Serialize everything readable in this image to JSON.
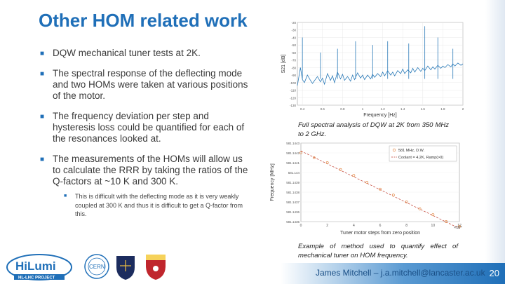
{
  "slide": {
    "title": "Other HOM related work",
    "bullets": [
      "DQW mechanical tuner tests at 2K.",
      "The spectral response of the deflecting mode and two HOMs were taken at various positions of the motor.",
      "The frequency deviation per step and hysteresis loss could be quantified for each of the resonances looked at.",
      "The measurements of the HOMs will allow us to calculate the RRR by taking the ratios of the Q-factors at ~10 K and 300 K."
    ],
    "sub_bullet": "This is difficult with the deflecting mode as it is very weakly coupled at 300 K and thus it is difficult to get a Q-factor from this.",
    "caption1": "Full spectral analysis of DQW at 2K from 350 MHz to 2 GHz.",
    "caption2": "Example of method used to quantify effect of mechanical tuner on HOM frequency.",
    "footer": "James Mitchell – j.a.mitchell@lancaster.ac.uk",
    "page_number": "20",
    "logo_text": {
      "hilumi": "HiLumi",
      "hilumi_sub": "HL-LHC PROJECT",
      "cern": "CERN"
    }
  },
  "colors": {
    "accent": "#1f6fb8",
    "series_blue": "#2a7ab8",
    "series_orange": "#e07a2e"
  },
  "chart_data": [
    {
      "type": "line",
      "title": "",
      "xlabel": "Frequency [Hz]",
      "ylabel": "S21 [dB]",
      "x_ticks": [
        "0.4",
        "0.6",
        "0.8",
        "1",
        "1.2",
        "1.4",
        "1.6",
        "1.8",
        "2"
      ],
      "y_ticks": [
        "-20",
        "-30",
        "-40",
        "-50",
        "-60",
        "-70",
        "-80",
        "-90",
        "-100",
        "-110",
        "-120",
        "-130"
      ],
      "xlim": [
        0.35,
        2.0
      ],
      "ylim": [
        -130,
        -20
      ],
      "series": [
        {
          "values": [
            [
              0.35,
              -104
            ],
            [
              0.38,
              -80
            ],
            [
              0.4,
              -96
            ],
            [
              0.42,
              -100
            ],
            [
              0.45,
              -90
            ],
            [
              0.48,
              -97
            ],
            [
              0.5,
              -101
            ],
            [
              0.55,
              -92
            ],
            [
              0.58,
              -99
            ],
            [
              0.6,
              -94
            ],
            [
              0.62,
              -102
            ],
            [
              0.65,
              -88
            ],
            [
              0.68,
              -97
            ],
            [
              0.7,
              -91
            ],
            [
              0.72,
              -100
            ],
            [
              0.75,
              -86
            ],
            [
              0.78,
              -95
            ],
            [
              0.8,
              -89
            ],
            [
              0.82,
              -97
            ],
            [
              0.85,
              -92
            ],
            [
              0.88,
              -98
            ],
            [
              0.9,
              -90
            ],
            [
              0.92,
              -96
            ],
            [
              0.95,
              -87
            ],
            [
              0.98,
              -94
            ],
            [
              1.0,
              -90
            ],
            [
              1.02,
              -96
            ],
            [
              1.05,
              -90
            ],
            [
              1.08,
              -95
            ],
            [
              1.1,
              -89
            ],
            [
              1.12,
              -93
            ],
            [
              1.15,
              -88
            ],
            [
              1.18,
              -92
            ],
            [
              1.2,
              -86
            ],
            [
              1.22,
              -91
            ],
            [
              1.25,
              -84
            ],
            [
              1.28,
              -90
            ],
            [
              1.3,
              -86
            ],
            [
              1.32,
              -91
            ],
            [
              1.35,
              -84
            ],
            [
              1.38,
              -88
            ],
            [
              1.4,
              -82
            ],
            [
              1.42,
              -88
            ],
            [
              1.45,
              -83
            ],
            [
              1.48,
              -87
            ],
            [
              1.5,
              -81
            ],
            [
              1.52,
              -86
            ],
            [
              1.55,
              -80
            ],
            [
              1.58,
              -85
            ],
            [
              1.6,
              -81
            ],
            [
              1.62,
              -84
            ],
            [
              1.65,
              -78
            ],
            [
              1.68,
              -83
            ],
            [
              1.7,
              -79
            ],
            [
              1.72,
              -82
            ],
            [
              1.75,
              -77
            ],
            [
              1.78,
              -81
            ],
            [
              1.8,
              -78
            ],
            [
              1.82,
              -80
            ],
            [
              1.85,
              -76
            ],
            [
              1.88,
              -79
            ],
            [
              1.9,
              -75
            ],
            [
              1.92,
              -78
            ],
            [
              1.95,
              -74
            ],
            [
              1.98,
              -77
            ],
            [
              2.0,
              -75
            ]
          ]
        },
        {
          "peaks": [
            [
              0.4,
              -40
            ],
            [
              0.58,
              -60
            ],
            [
              0.75,
              -55
            ],
            [
              0.93,
              -45
            ],
            [
              1.1,
              -50
            ],
            [
              1.25,
              -45
            ],
            [
              1.46,
              -48
            ],
            [
              1.62,
              -25
            ],
            [
              1.75,
              -40
            ],
            [
              1.9,
              -55
            ]
          ]
        }
      ]
    },
    {
      "type": "line",
      "title": "",
      "xlabel": "Tuner motor steps from zero position",
      "ylabel": "Frequency [MHz]",
      "x_ticks": [
        "0",
        "2",
        "4",
        "6",
        "8",
        "10",
        "12"
      ],
      "x_multiplier": "×10⁴",
      "y_ticks": [
        "581.1443",
        "581.1442",
        "581.1441",
        "581.144",
        "581.1439",
        "581.1438",
        "581.1437",
        "581.1436",
        "581.1435"
      ],
      "xlim": [
        0,
        12
      ],
      "ylim": [
        581.1435,
        581.1443
      ],
      "legend": [
        "581 MHz, D.W.",
        "Coolant = 4.2K, Ramp(>0)"
      ],
      "series": [
        {
          "name": "581 MHz, D.W.",
          "x": [
            0,
            1,
            2,
            3,
            4,
            5,
            6,
            7,
            8,
            9,
            10,
            11,
            12
          ],
          "values": [
            581.1442,
            581.14415,
            581.1441,
            581.14403,
            581.14397,
            581.1439,
            581.14383,
            581.14377,
            581.1437,
            581.14363,
            581.14357,
            581.1435,
            581.14345
          ]
        },
        {
          "name": "Coolant = 4.2K, Ramp(>0)",
          "x": [
            0,
            12
          ],
          "values": [
            581.14422,
            581.14343
          ]
        }
      ]
    }
  ]
}
